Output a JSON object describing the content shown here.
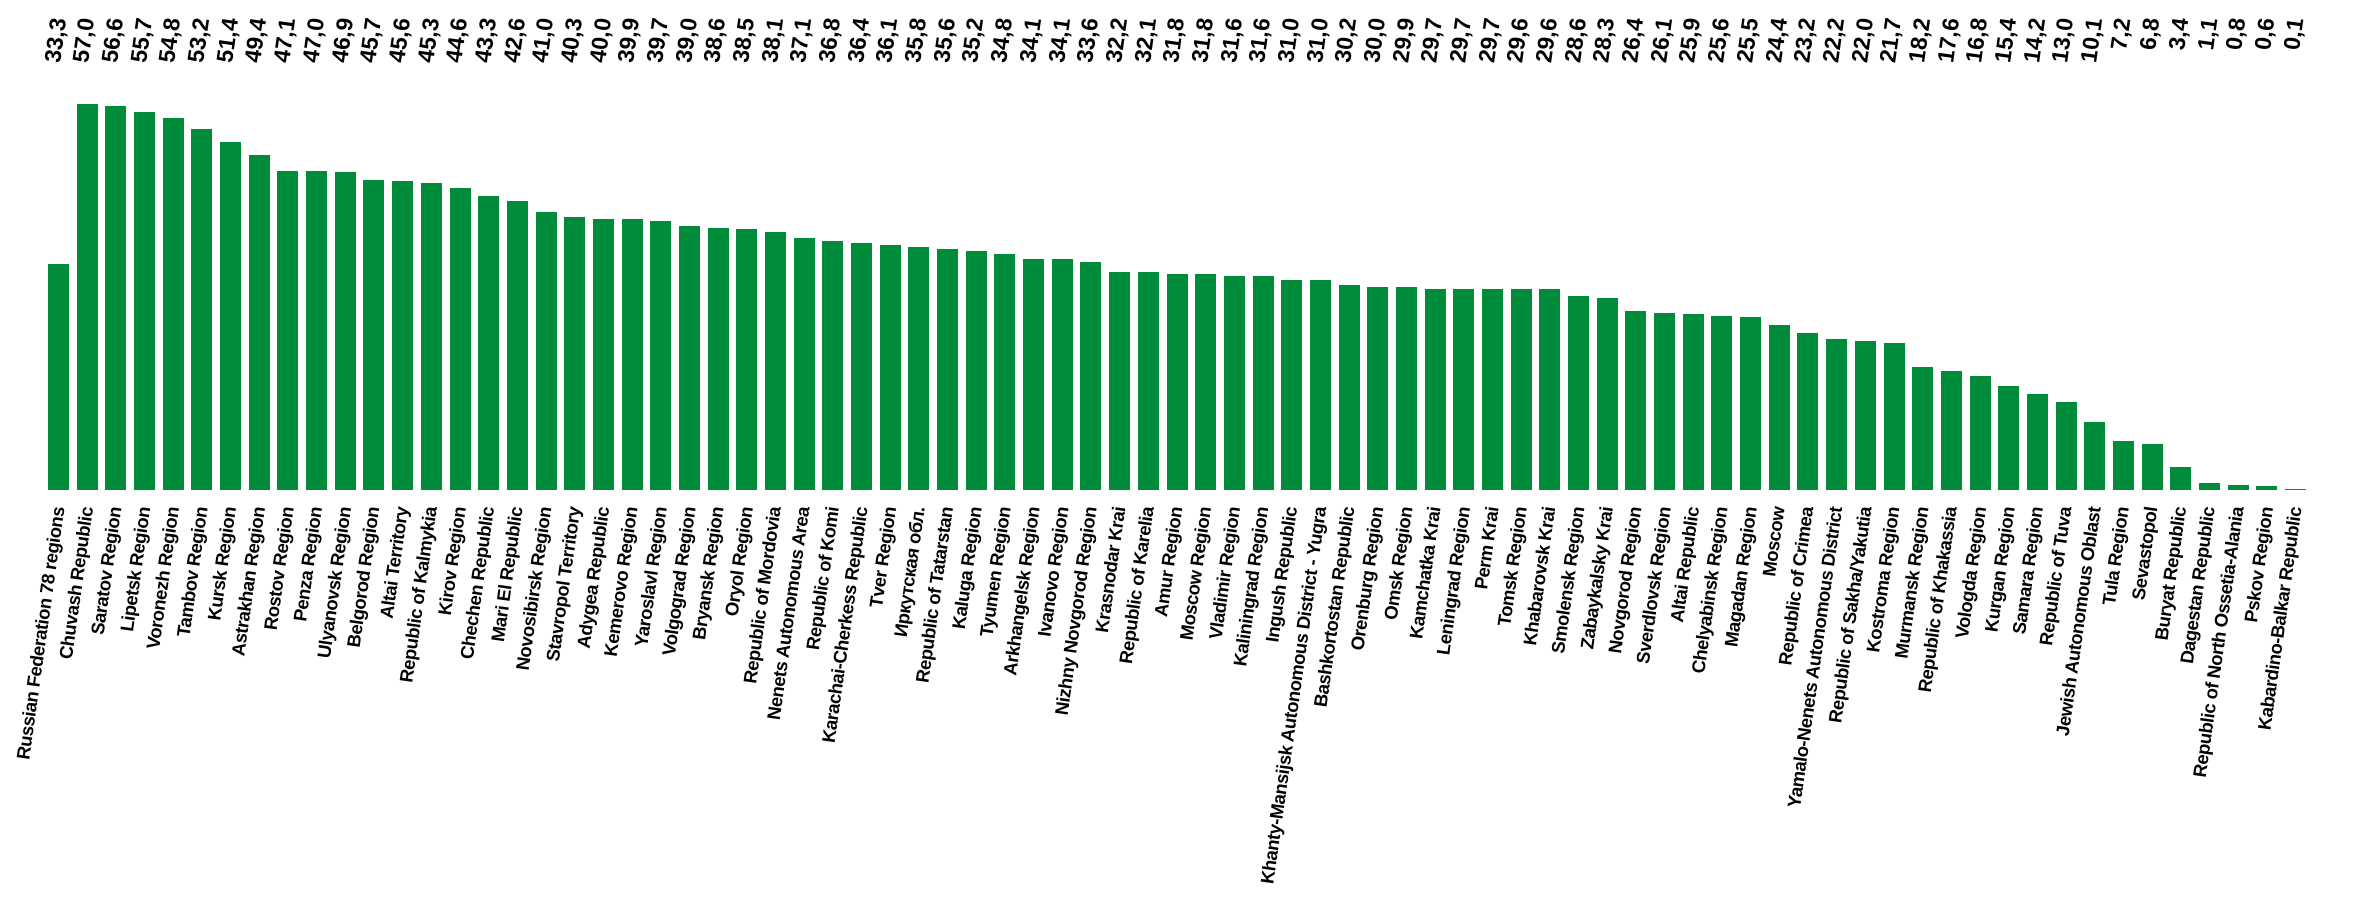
{
  "chart_data": {
    "type": "bar",
    "title": "",
    "xlabel": "",
    "ylabel": "",
    "grid": false,
    "legend": false,
    "ylim": [
      0,
      60
    ],
    "bar_color": "#008C3A",
    "text_color": "#000000",
    "background_color": "#FFFFFF",
    "value_label_decimal_separator": ",",
    "value_label_position": "rotated vertical, top row of chart",
    "category_label_position": "rotated vertical, below baseline",
    "categories": [
      "Russian Federation 78 regions",
      "Chuvash Republic",
      "Saratov Region",
      "Lipetsk Region",
      "Voronezh Region",
      "Tambov Region",
      "Kursk Region",
      "Astrakhan Region",
      "Rostov Region",
      "Penza Region",
      "Ulyanovsk Region",
      "Belgorod Region",
      "Altai Territory",
      "Republic of Kalmykia",
      "Kirov Region",
      "Chechen Republic",
      "Mari El Republic",
      "Novosibirsk Region",
      "Stavropol Territory",
      "Adygea Republic",
      "Kemerovo Region",
      "Yaroslavl Region",
      "Volgograd Region",
      "Bryansk Region",
      "Oryol Region",
      "Republic of Mordovia",
      "Nenets Autonomous Area",
      "Republic of Komi",
      "Karachai-Cherkess Republic",
      "Tver Region",
      "Иркутская обл.",
      "Republic of Tatarstan",
      "Kaluga Region",
      "Tyumen Region",
      "Arkhangelsk Region",
      "Ivanovo Region",
      "Nizhny Novgorod Region",
      "Krasnodar Krai",
      "Republic of Karelia",
      "Amur Region",
      "Moscow Region",
      "Vladimir Region",
      "Kaliningrad Region",
      "Ingush Republic",
      "Khanty-Mansijsk Autonomous District - Yugra",
      "Bashkortostan Republic",
      "Orenburg Region",
      "Omsk Region",
      "Kamchatka Krai",
      "Leningrad Region",
      "Perm Krai",
      "Tomsk Region",
      "Khabarovsk Krai",
      "Smolensk Region",
      "Zabaykalsky Krai",
      "Novgorod Region",
      "Sverdlovsk Region",
      "Altai Republic",
      "Chelyabinsk Region",
      "Magadan Region",
      "Moscow",
      "Republic of Crimea",
      "Yamalo-Nenets Autonomous District",
      "Republic of Sakha/Yakutia",
      "Kostroma Region",
      "Murmansk Region",
      "Republic of Khakassia",
      "Vologda Region",
      "Kurgan Region",
      "Samara Region",
      "Republic of Tuva",
      "Jewish Autonomous Oblast",
      "Tula Region",
      "Sevastopol",
      "Buryat Republic",
      "Dagestan Republic",
      "Republic of North Ossetia-Alania",
      "Pskov Region",
      "Kabardino-Balkar Republic"
    ],
    "values": [
      33.3,
      57.0,
      56.6,
      55.7,
      54.8,
      53.2,
      51.4,
      49.4,
      47.1,
      47.0,
      46.9,
      45.7,
      45.6,
      45.3,
      44.6,
      43.3,
      42.6,
      41.0,
      40.3,
      40.0,
      39.9,
      39.7,
      39.0,
      38.6,
      38.5,
      38.1,
      37.1,
      36.8,
      36.4,
      36.1,
      35.8,
      35.6,
      35.2,
      34.8,
      34.1,
      34.1,
      33.6,
      32.2,
      32.1,
      31.8,
      31.8,
      31.6,
      31.6,
      31.0,
      31.0,
      30.2,
      30.0,
      29.9,
      29.7,
      29.7,
      29.7,
      29.6,
      29.6,
      28.6,
      28.3,
      26.4,
      26.1,
      25.9,
      25.6,
      25.5,
      24.4,
      23.2,
      22.2,
      22.0,
      21.7,
      18.2,
      17.6,
      16.8,
      15.4,
      14.2,
      13.0,
      10.1,
      7.2,
      6.8,
      3.4,
      1.1,
      0.8,
      0.6,
      0.1
    ]
  }
}
